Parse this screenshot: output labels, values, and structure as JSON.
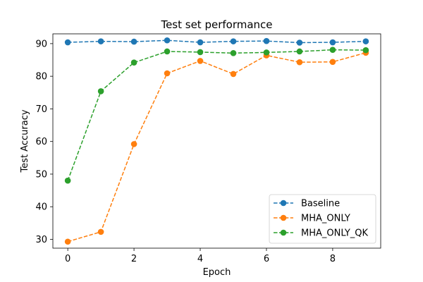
{
  "chart_data": {
    "type": "line",
    "title": "Test set performance",
    "xlabel": "Epoch",
    "ylabel": "Test Accuracy",
    "x": [
      0,
      1,
      2,
      3,
      4,
      5,
      6,
      7,
      8,
      9
    ],
    "xlim": [
      -0.45,
      9.45
    ],
    "ylim": [
      27.3,
      93.0
    ],
    "xticks": [
      0,
      2,
      4,
      6,
      8
    ],
    "yticks": [
      30,
      40,
      50,
      60,
      70,
      80,
      90
    ],
    "grid": false,
    "legend_position": "lower-right",
    "line_style": "dashed",
    "marker": "circle",
    "series": [
      {
        "name": "Baseline",
        "color": "#1f77b4",
        "values": [
          90.4,
          90.7,
          90.6,
          91.0,
          90.4,
          90.7,
          90.8,
          90.3,
          90.4,
          90.7
        ]
      },
      {
        "name": "MHA_ONLY",
        "color": "#ff7f0e",
        "values": [
          29.3,
          32.3,
          59.2,
          80.9,
          84.7,
          80.7,
          86.4,
          84.3,
          84.4,
          87.2
        ]
      },
      {
        "name": "MHA_ONLY_QK",
        "color": "#2ca02c",
        "values": [
          48.0,
          75.4,
          84.2,
          87.6,
          87.4,
          87.1,
          87.3,
          87.6,
          88.1,
          88.0
        ]
      }
    ]
  }
}
